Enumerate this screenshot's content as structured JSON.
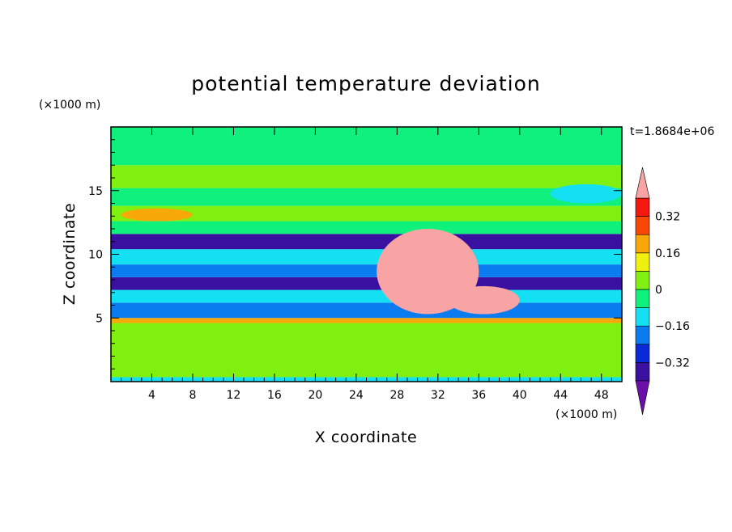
{
  "chart_data": {
    "type": "heatmap",
    "title": "potential temperature deviation",
    "xlabel": "X coordinate",
    "ylabel": "Z coordinate",
    "x_unit": "(×1000 m)",
    "y_unit": "(×1000 m)",
    "time_label": "t=1.8684e+06",
    "xlim": [
      0,
      50
    ],
    "ylim": [
      0,
      20
    ],
    "x_ticks": [
      4,
      8,
      12,
      16,
      20,
      24,
      28,
      32,
      36,
      40,
      44,
      48
    ],
    "y_ticks": [
      5,
      10,
      15
    ],
    "colorbar": {
      "levels": [
        -0.4,
        -0.32,
        -0.24,
        -0.16,
        -0.08,
        0,
        0.08,
        0.16,
        0.24,
        0.32,
        0.4
      ],
      "tick_values": [
        -0.32,
        -0.16,
        0,
        0.16,
        0.32
      ],
      "tick_labels": [
        "−0.32",
        "−0.16",
        "0",
        "0.16",
        "0.32"
      ],
      "colors": [
        "#6a0fa8",
        "#3a10a0",
        "#0a2ad8",
        "#0a7cf0",
        "#14e0f4",
        "#10f07c",
        "#80f010",
        "#f0f010",
        "#f8a808",
        "#f84808",
        "#f41810",
        "#f8a4a4"
      ],
      "extend": "both"
    },
    "bands": [
      {
        "z": [
          0.0,
          0.35
        ],
        "value": -0.1
      },
      {
        "z": [
          0.35,
          4.0
        ],
        "value": 0.02
      },
      {
        "z": [
          4.0,
          4.6
        ],
        "value": 0.06
      },
      {
        "z": [
          4.6,
          5.0
        ],
        "value": 0.2
      },
      {
        "z": [
          5.0,
          6.2
        ],
        "value": -0.2
      },
      {
        "z": [
          6.2,
          7.2
        ],
        "value": -0.12
      },
      {
        "z": [
          7.2,
          8.2
        ],
        "value": -0.38
      },
      {
        "z": [
          8.2,
          9.2
        ],
        "value": -0.18
      },
      {
        "z": [
          9.2,
          10.4
        ],
        "value": -0.1
      },
      {
        "z": [
          10.4,
          11.6
        ],
        "value": -0.36
      },
      {
        "z": [
          11.6,
          12.6
        ],
        "value": -0.02
      },
      {
        "z": [
          12.6,
          13.8
        ],
        "value": 0.06
      },
      {
        "z": [
          13.8,
          15.2
        ],
        "value": -0.04
      },
      {
        "z": [
          15.2,
          17.0
        ],
        "value": 0.05
      },
      {
        "z": [
          17.0,
          20.0
        ],
        "value": -0.02
      }
    ],
    "features": [
      {
        "name": "warm anomaly core",
        "x": [
          26,
          36
        ],
        "z": [
          5.3,
          12.0
        ],
        "value": 0.45
      },
      {
        "name": "warm anvil right",
        "x": [
          33,
          40
        ],
        "z": [
          5.3,
          7.5
        ],
        "value": 0.45
      },
      {
        "name": "warm layer left",
        "x": [
          1,
          8
        ],
        "z": [
          12.6,
          13.6
        ],
        "value": 0.18
      },
      {
        "name": "cool lobe upper right",
        "x": [
          43,
          50
        ],
        "z": [
          14.0,
          15.5
        ],
        "value": -0.12
      }
    ]
  }
}
